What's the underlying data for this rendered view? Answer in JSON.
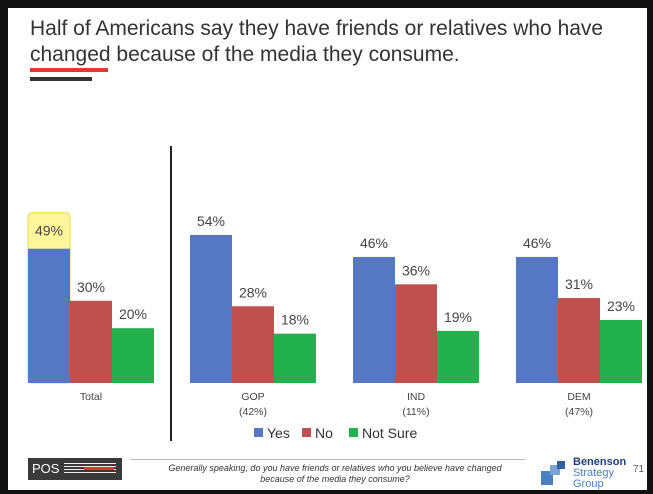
{
  "title": "Half of Americans say they have friends or relatives who have changed because of the media they consume.",
  "colors": {
    "yes": "#5678c2",
    "no": "#c0504d",
    "not_sure": "#22b14c",
    "highlight": "#fff59a"
  },
  "chart_data": {
    "type": "bar",
    "categories": [
      "Total",
      "GOP",
      "IND",
      "DEM"
    ],
    "category_sublabels": [
      "",
      "(42%)",
      "(11%)",
      "(47%)"
    ],
    "series": [
      {
        "name": "Yes",
        "values": [
          49,
          54,
          46,
          46
        ]
      },
      {
        "name": "No",
        "values": [
          30,
          28,
          36,
          31
        ]
      },
      {
        "name": "Not Sure",
        "values": [
          20,
          18,
          19,
          23
        ]
      }
    ],
    "value_labels": [
      [
        "49%",
        "54%",
        "46%",
        "46%"
      ],
      [
        "30%",
        "28%",
        "36%",
        "31%"
      ],
      [
        "20%",
        "18%",
        "19%",
        "23%"
      ]
    ],
    "highlighted": {
      "series": 0,
      "category": 0
    },
    "legend_position": "bottom",
    "grid": false,
    "ylim": [
      0,
      100
    ]
  },
  "footer": {
    "pos_logo": "POS",
    "question": "Generally speaking, do you have friends or relatives who you believe have changed because of the media they consume?",
    "bsg_logo": [
      "Benenson",
      "Strategy",
      "Group"
    ],
    "page_number": "71"
  }
}
